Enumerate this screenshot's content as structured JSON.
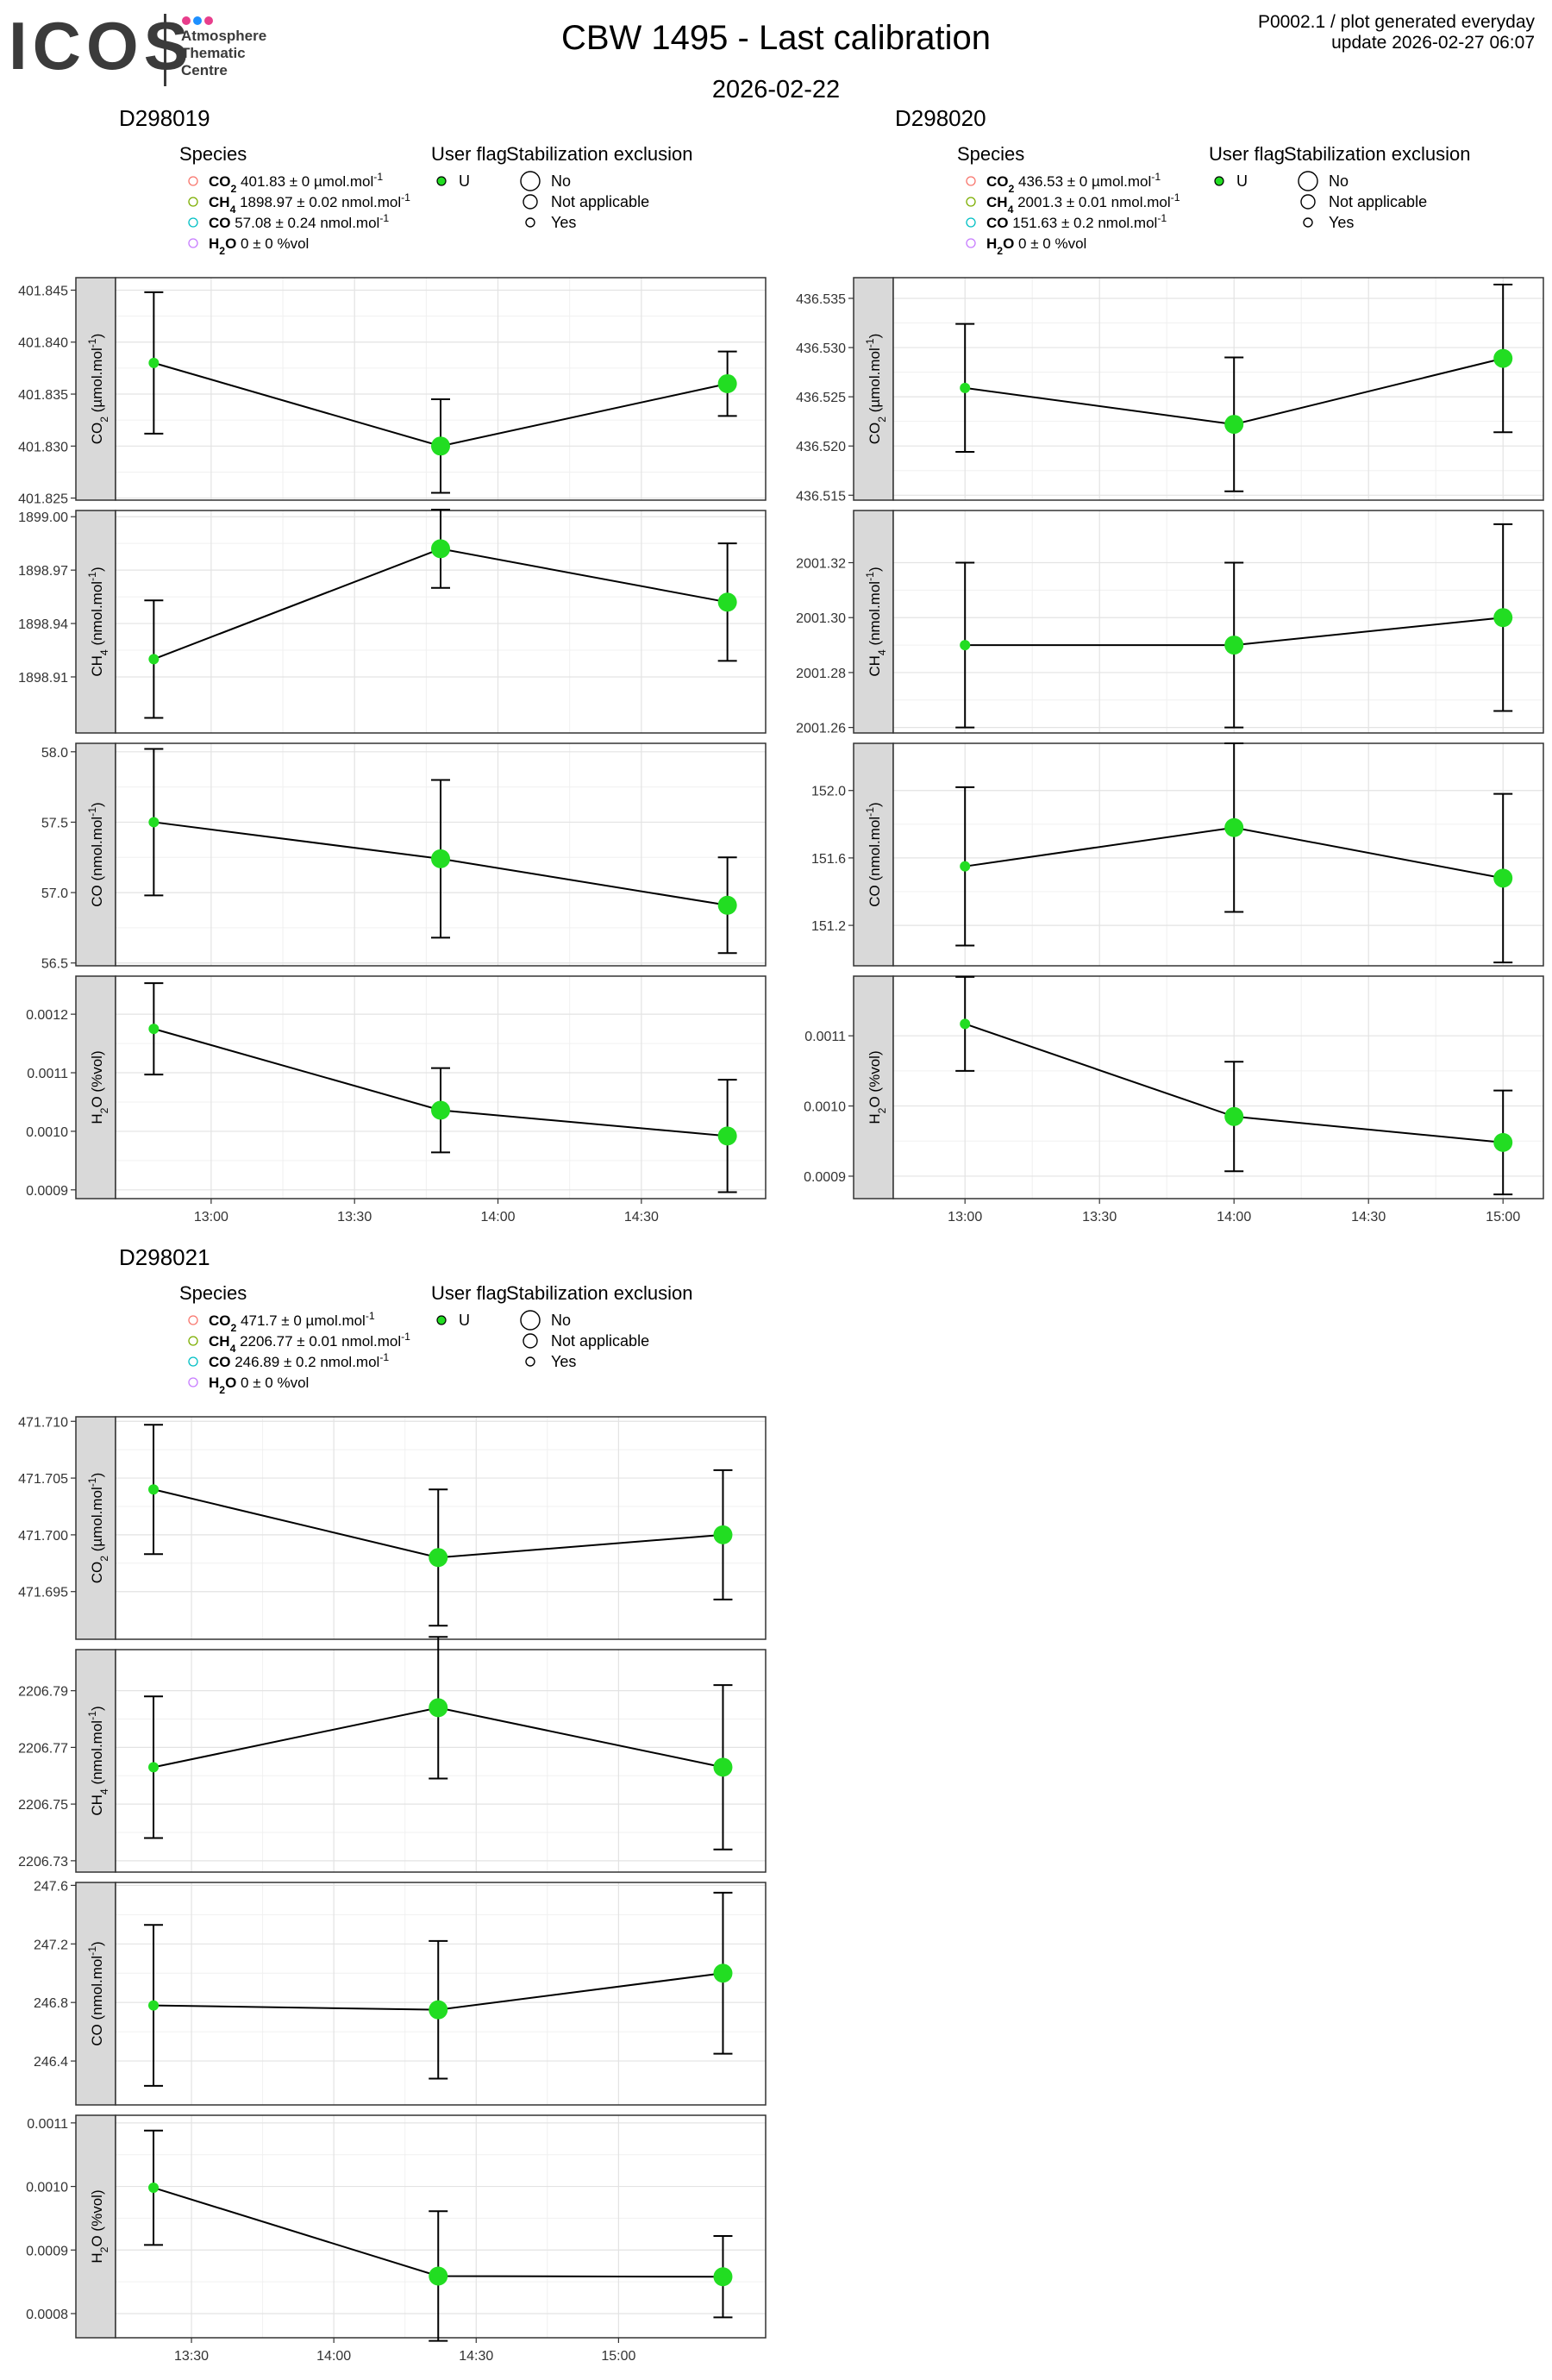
{
  "header": {
    "logo_text": "ICOS",
    "logo_subtitle": [
      "Atmosphere",
      "Thematic",
      "Centre"
    ],
    "logo_dot_colors": [
      "#e83e8c",
      "#1e90ff",
      "#e83e8c"
    ],
    "title": "CBW 1495 - Last calibration",
    "subtitle": "2026-02-22",
    "meta_line1": "P0002.1 / plot generated everyday",
    "meta_line2": "update  2026-02-27 06:07"
  },
  "legend": {
    "species_title": "Species",
    "userflag_title": "User flag",
    "stab_title": "Stabilization exclusion",
    "userflag_item": "U",
    "stab_items": [
      "No",
      "Not applicable",
      "Yes"
    ],
    "species_colors": [
      "#f8766d",
      "#7cae00",
      "#00bfc4",
      "#c77cff"
    ]
  },
  "chart_data": [
    {
      "type": "scatter",
      "cylinder": "D298019",
      "legend_entries": [
        {
          "bold": "CO",
          "sub": "2",
          "text": " 401.83 ± 0 µmol.mol",
          "sup": "-1"
        },
        {
          "bold": "CH",
          "sub": "4",
          "text": " 1898.97 ± 0.02 nmol.mol",
          "sup": "-1"
        },
        {
          "bold": "CO",
          "sub": "",
          "text": " 57.08 ± 0.24 nmol.mol",
          "sup": "-1"
        },
        {
          "bold": "H",
          "sub": "2",
          "bold2": "O",
          "text": " 0 ± 0 %vol",
          "sup": ""
        }
      ],
      "x": [
        "12:48",
        "13:48",
        "14:48"
      ],
      "xticks": [
        "13:00",
        "13:30",
        "14:00",
        "14:30"
      ],
      "xrange": [
        "12:40",
        "14:56"
      ],
      "point_size": [
        "Yes",
        "No",
        "No"
      ],
      "panels": [
        {
          "ylabel": {
            "main": "CO",
            "sub": "2",
            "rest": " (µmol.mol",
            "sup": "-1",
            "end": ")"
          },
          "y": [
            401.838,
            401.83,
            401.836
          ],
          "err": [
            0.0068,
            0.0045,
            0.0031
          ],
          "ylim": [
            401.8248,
            401.8462
          ],
          "yticks": [
            401.825,
            401.83,
            401.835,
            401.84,
            401.845
          ],
          "ytick_labels": [
            "401.825",
            "401.830",
            "401.835",
            "401.840",
            "401.845"
          ]
        },
        {
          "ylabel": {
            "main": "CH",
            "sub": "4",
            "rest": " (nmol.mol",
            "sup": "-1",
            "end": ")"
          },
          "y": [
            1898.92,
            1898.982,
            1898.952
          ],
          "err": [
            0.033,
            0.022,
            0.033
          ],
          "ylim": [
            1898.8785,
            1899.0035
          ],
          "yticks": [
            1898.91,
            1898.94,
            1898.97,
            1899.0
          ],
          "ytick_labels": [
            "1898.91",
            "1898.94",
            "1898.97",
            "1899.00"
          ]
        },
        {
          "ylabel": {
            "main": "CO (nmol.mol",
            "sub": "",
            "rest": "",
            "sup": "-1",
            "end": ")"
          },
          "y": [
            57.5,
            57.24,
            56.91
          ],
          "err": [
            0.52,
            0.56,
            0.34
          ],
          "ylim": [
            56.48,
            58.06
          ],
          "yticks": [
            56.5,
            57.0,
            57.5,
            58.0
          ],
          "ytick_labels": [
            "56.5",
            "57.0",
            "57.5",
            "58.0"
          ]
        },
        {
          "ylabel": {
            "main": "H",
            "sub": "2",
            "rest": "O (%vol)",
            "sup": "",
            "end": ""
          },
          "y": [
            0.001175,
            0.001036,
            0.000992
          ],
          "err": [
            7.8e-05,
            7.2e-05,
            9.6e-05
          ],
          "ylim": [
            0.000885,
            0.001265
          ],
          "yticks": [
            0.0009,
            0.001,
            0.0011,
            0.0012
          ],
          "ytick_labels": [
            "0.0009",
            "0.0010",
            "0.0011",
            "0.0012"
          ]
        }
      ]
    },
    {
      "type": "scatter",
      "cylinder": "D298020",
      "legend_entries": [
        {
          "bold": "CO",
          "sub": "2",
          "text": " 436.53 ± 0 µmol.mol",
          "sup": "-1"
        },
        {
          "bold": "CH",
          "sub": "4",
          "text": " 2001.3 ± 0.01 nmol.mol",
          "sup": "-1"
        },
        {
          "bold": "CO",
          "sub": "",
          "text": " 151.63 ± 0.2 nmol.mol",
          "sup": "-1"
        },
        {
          "bold": "H",
          "sub": "2",
          "bold2": "O",
          "text": " 0 ± 0 %vol",
          "sup": ""
        }
      ],
      "x": [
        "13:00",
        "14:00",
        "15:00"
      ],
      "xticks": [
        "13:00",
        "13:30",
        "14:00",
        "14:30",
        "15:00"
      ],
      "xrange": [
        "12:44",
        "15:09"
      ],
      "point_size": [
        "Yes",
        "No",
        "No"
      ],
      "panels": [
        {
          "ylabel": {
            "main": "CO",
            "sub": "2",
            "rest": " (µmol.mol",
            "sup": "-1",
            "end": ")"
          },
          "y": [
            436.5259,
            436.5222,
            436.5289
          ],
          "err": [
            0.0065,
            0.0068,
            0.0075
          ],
          "ylim": [
            436.5145,
            436.5371
          ],
          "yticks": [
            436.515,
            436.52,
            436.525,
            436.53,
            436.535
          ],
          "ytick_labels": [
            "436.515",
            "436.520",
            "436.525",
            "436.530",
            "436.535"
          ]
        },
        {
          "ylabel": {
            "main": "CH",
            "sub": "4",
            "rest": " (nmol.mol",
            "sup": "-1",
            "end": ")"
          },
          "y": [
            2001.29,
            2001.29,
            2001.3
          ],
          "err": [
            0.03,
            0.03,
            0.034
          ],
          "ylim": [
            2001.258,
            2001.339
          ],
          "yticks": [
            2001.26,
            2001.28,
            2001.3,
            2001.32
          ],
          "ytick_labels": [
            "2001.26",
            "2001.28",
            "2001.30",
            "2001.32"
          ]
        },
        {
          "ylabel": {
            "main": "CO (nmol.mol",
            "sub": "",
            "rest": "",
            "sup": "-1",
            "end": ")"
          },
          "y": [
            151.55,
            151.78,
            151.48
          ],
          "err": [
            0.47,
            0.5,
            0.5
          ],
          "ylim": [
            150.96,
            152.28
          ],
          "yticks": [
            151.2,
            151.6,
            152.0
          ],
          "ytick_labels": [
            "151.2",
            "151.6",
            "152.0"
          ]
        },
        {
          "ylabel": {
            "main": "H",
            "sub": "2",
            "rest": "O (%vol)",
            "sup": "",
            "end": ""
          },
          "y": [
            0.001117,
            0.000985,
            0.000948
          ],
          "err": [
            6.7e-05,
            7.8e-05,
            7.4e-05
          ],
          "ylim": [
            0.000868,
            0.001185
          ],
          "yticks": [
            0.0009,
            0.001,
            0.0011
          ],
          "ytick_labels": [
            "0.0009",
            "0.0010",
            "0.0011"
          ]
        }
      ]
    },
    {
      "type": "scatter",
      "cylinder": "D298021",
      "legend_entries": [
        {
          "bold": "CO",
          "sub": "2",
          "text": " 471.7 ± 0 µmol.mol",
          "sup": "-1"
        },
        {
          "bold": "CH",
          "sub": "4",
          "text": " 2206.77 ± 0.01 nmol.mol",
          "sup": "-1"
        },
        {
          "bold": "CO",
          "sub": "",
          "text": " 246.89 ± 0.2 nmol.mol",
          "sup": "-1"
        },
        {
          "bold": "H",
          "sub": "2",
          "bold2": "O",
          "text": " 0 ± 0 %vol",
          "sup": ""
        }
      ],
      "x": [
        "13:22",
        "14:22",
        "15:22"
      ],
      "xticks": [
        "13:30",
        "14:00",
        "14:30",
        "15:00"
      ],
      "xrange": [
        "13:14",
        "15:31"
      ],
      "point_size": [
        "Yes",
        "No",
        "No"
      ],
      "panels": [
        {
          "ylabel": {
            "main": "CO",
            "sub": "2",
            "rest": " (µmol.mol",
            "sup": "-1",
            "end": ")"
          },
          "y": [
            471.704,
            471.698,
            471.7
          ],
          "err": [
            0.0057,
            0.006,
            0.0057
          ],
          "ylim": [
            471.6908,
            471.7104
          ],
          "yticks": [
            471.695,
            471.7,
            471.705,
            471.71
          ],
          "ytick_labels": [
            "471.695",
            "471.700",
            "471.705",
            "471.710"
          ]
        },
        {
          "ylabel": {
            "main": "CH",
            "sub": "4",
            "rest": " (nmol.mol",
            "sup": "-1",
            "end": ")"
          },
          "y": [
            2206.763,
            2206.784,
            2206.763
          ],
          "err": [
            0.025,
            0.025,
            0.029
          ],
          "ylim": [
            2206.726,
            2206.8045
          ],
          "yticks": [
            2206.73,
            2206.75,
            2206.77,
            2206.79
          ],
          "ytick_labels": [
            "2206.73",
            "2206.75",
            "2206.77",
            "2206.79"
          ]
        },
        {
          "ylabel": {
            "main": "CO (nmol.mol",
            "sub": "",
            "rest": "",
            "sup": "-1",
            "end": ")"
          },
          "y": [
            246.78,
            246.75,
            247.0
          ],
          "err": [
            0.55,
            0.47,
            0.55
          ],
          "ylim": [
            246.1,
            247.62
          ],
          "yticks": [
            246.4,
            246.8,
            247.2,
            247.6
          ],
          "ytick_labels": [
            "246.4",
            "246.8",
            "247.2",
            "247.6"
          ]
        },
        {
          "ylabel": {
            "main": "H",
            "sub": "2",
            "rest": "O (%vol)",
            "sup": "",
            "end": ""
          },
          "y": [
            0.000998,
            0.000859,
            0.000858
          ],
          "err": [
            9e-05,
            0.000102,
            6.4e-05
          ],
          "ylim": [
            0.000762,
            0.001112
          ],
          "yticks": [
            0.0008,
            0.0009,
            0.001,
            0.0011
          ],
          "ytick_labels": [
            "0.0008",
            "0.0009",
            "0.0010",
            "0.0011"
          ]
        }
      ]
    }
  ]
}
